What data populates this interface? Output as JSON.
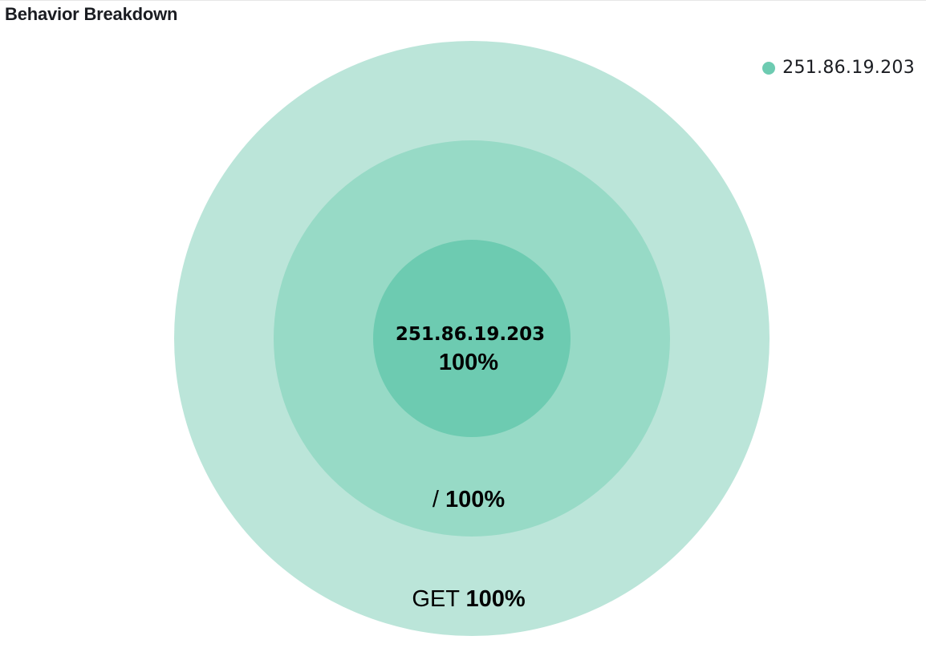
{
  "panel": {
    "title": "Behavior Breakdown"
  },
  "legend": {
    "items": [
      {
        "label": "251.86.19.203",
        "color": "#6dcbb1"
      }
    ]
  },
  "colors": {
    "inner": "#6dcbb1",
    "middle": "#97dac6",
    "outer": "#bbe5d9",
    "text": "#000000"
  },
  "chart_data": {
    "type": "pie",
    "rings": [
      {
        "level": "inner",
        "name": "251.86.19.203",
        "value": 100,
        "percent_label": "100%"
      },
      {
        "level": "middle",
        "name": "/",
        "value": 100,
        "percent_label": "100%"
      },
      {
        "level": "outer",
        "name": "GET",
        "value": 100,
        "percent_label": "100%"
      }
    ],
    "legend_position": "top-right"
  }
}
